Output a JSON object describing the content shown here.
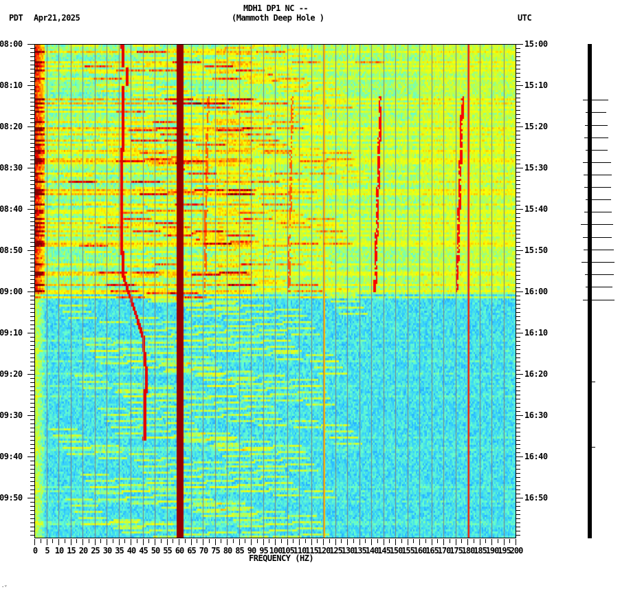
{
  "header": {
    "station_line": "MDH1 DP1 NC --",
    "location_line": "(Mammoth Deep Hole )",
    "left_timezone": "PDT",
    "date": "Apr21,2025",
    "right_timezone": "UTC"
  },
  "footer": {
    "corner_mark": "·ⱽ"
  },
  "colors": {
    "background": "#ffffff",
    "axis": "#000000",
    "colormap": [
      "#0000aa",
      "#0055ff",
      "#33ccff",
      "#66ffcc",
      "#ccff33",
      "#ffff00",
      "#ff9900",
      "#ff0000",
      "#800000"
    ],
    "gridline": "#808080"
  },
  "chart_data": {
    "type": "heatmap",
    "title": "MDH1 DP1 NC -- (Mammoth Deep Hole )",
    "subtitle": "Apr21,2025",
    "xlabel": "FREQUENCY (HZ)",
    "ylabel_left": "PDT",
    "ylabel_right": "UTC",
    "xlim": [
      0,
      200
    ],
    "x_ticks": [
      "0",
      "5",
      "10",
      "15",
      "20",
      "25",
      "30",
      "35",
      "40",
      "45",
      "50",
      "55",
      "60",
      "65",
      "70",
      "75",
      "80",
      "85",
      "90",
      "95",
      "100",
      "105",
      "110",
      "115",
      "120",
      "125",
      "130",
      "135",
      "140",
      "145",
      "150",
      "155",
      "160",
      "165",
      "170",
      "175",
      "180",
      "185",
      "190",
      "195",
      "200"
    ],
    "x_minor_tick_step": 1,
    "y_ticks_left": [
      "08:00",
      "08:10",
      "08:20",
      "08:30",
      "08:40",
      "08:50",
      "09:00",
      "09:10",
      "09:20",
      "09:30",
      "09:40",
      "09:50"
    ],
    "y_ticks_right": [
      "15:00",
      "15:10",
      "15:20",
      "15:30",
      "15:40",
      "15:50",
      "16:00",
      "16:10",
      "16:20",
      "16:30",
      "16:40",
      "16:50"
    ],
    "y_minor_tick_step_minutes": 1,
    "time_range_minutes": 120,
    "grid": true,
    "grid_vertical_every_hz": 5,
    "legend": "none",
    "features": {
      "persistent_lines_hz": [
        {
          "freq": 60,
          "strength": "max",
          "width_hz": 1.2
        },
        {
          "freq": 120,
          "strength": "moderate",
          "width_hz": 0.4
        },
        {
          "freq": 180,
          "strength": "moderate",
          "width_hz": 0.4
        }
      ],
      "low_freq_energy_0_3hz": "high during 08:00-09:05, moderate after",
      "wandering_tones": [
        {
          "start_time": "08:00",
          "end_time": "09:38",
          "freq_start": 36,
          "freq_mid_0910": 43,
          "freq_end": 46
        },
        {
          "start_time": "08:15",
          "end_time": "09:00",
          "freq_start": 72,
          "freq_end": 70
        },
        {
          "start_time": "08:20",
          "end_time": "09:00",
          "freq_start": 107,
          "freq_end": 105
        },
        {
          "start_time": "08:15",
          "end_time": "09:00",
          "freq_start": 144,
          "freq_end": 141
        },
        {
          "start_time": "08:15",
          "end_time": "09:00",
          "freq_start": 178,
          "freq_end": 175
        }
      ],
      "curved_harmonic_arcs": "descending-frequency arcs across 20-100 Hz throughout",
      "level_change_time": "09:00 (16:00 UTC) — higher noise before, lower after"
    }
  },
  "seismogram": {
    "trace": "vertical black trace 08:00-10:00",
    "spike_marks_between": [
      "08:14",
      "09:02"
    ]
  }
}
